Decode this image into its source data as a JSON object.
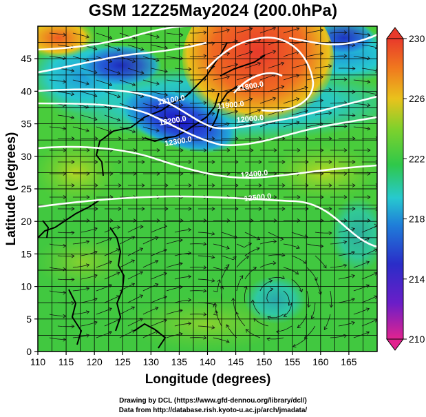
{
  "title": "GSM 12Z25May2024 (200.0hPa)",
  "map": {
    "xlabel": "Longitude (degrees)",
    "ylabel": "Latitude  (degrees)",
    "xlim": [
      110,
      170
    ],
    "ylim": [
      0,
      50
    ],
    "x_ticks": [
      "110",
      "115",
      "120",
      "125",
      "130",
      "135",
      "140",
      "145",
      "150",
      "155",
      "160",
      "165"
    ],
    "y_ticks": [
      "0",
      "5",
      "10",
      "15",
      "20",
      "25",
      "30",
      "35",
      "40",
      "45"
    ],
    "contour_labels": [
      "12100.0",
      "12200.0",
      "12300.0",
      "11800.0",
      "11900.0",
      "12000.0",
      "12400.0",
      "12500.0"
    ],
    "field_colors": {
      "warm": "#e8402a",
      "mid": "#39c93a",
      "cool": "#2a6ed8",
      "cold": "#1a10c0"
    }
  },
  "colorbar": {
    "ticks": [
      "230",
      "226",
      "222",
      "218",
      "214",
      "210"
    ],
    "range": [
      210,
      230
    ],
    "colors": [
      "#e2238f",
      "#3b1cc4",
      "#1f7ed9",
      "#27c9cf",
      "#2fc84a",
      "#7fd12c",
      "#e9c21c",
      "#f07a1e",
      "#e83a2b"
    ]
  },
  "credits": {
    "line1": "Drawing by DCL (https://www.gfd-dennou.org/library/dcl/)",
    "line2": "Data from http://database.rish.kyoto-u.ac.jp/arch/jmadata/"
  }
}
